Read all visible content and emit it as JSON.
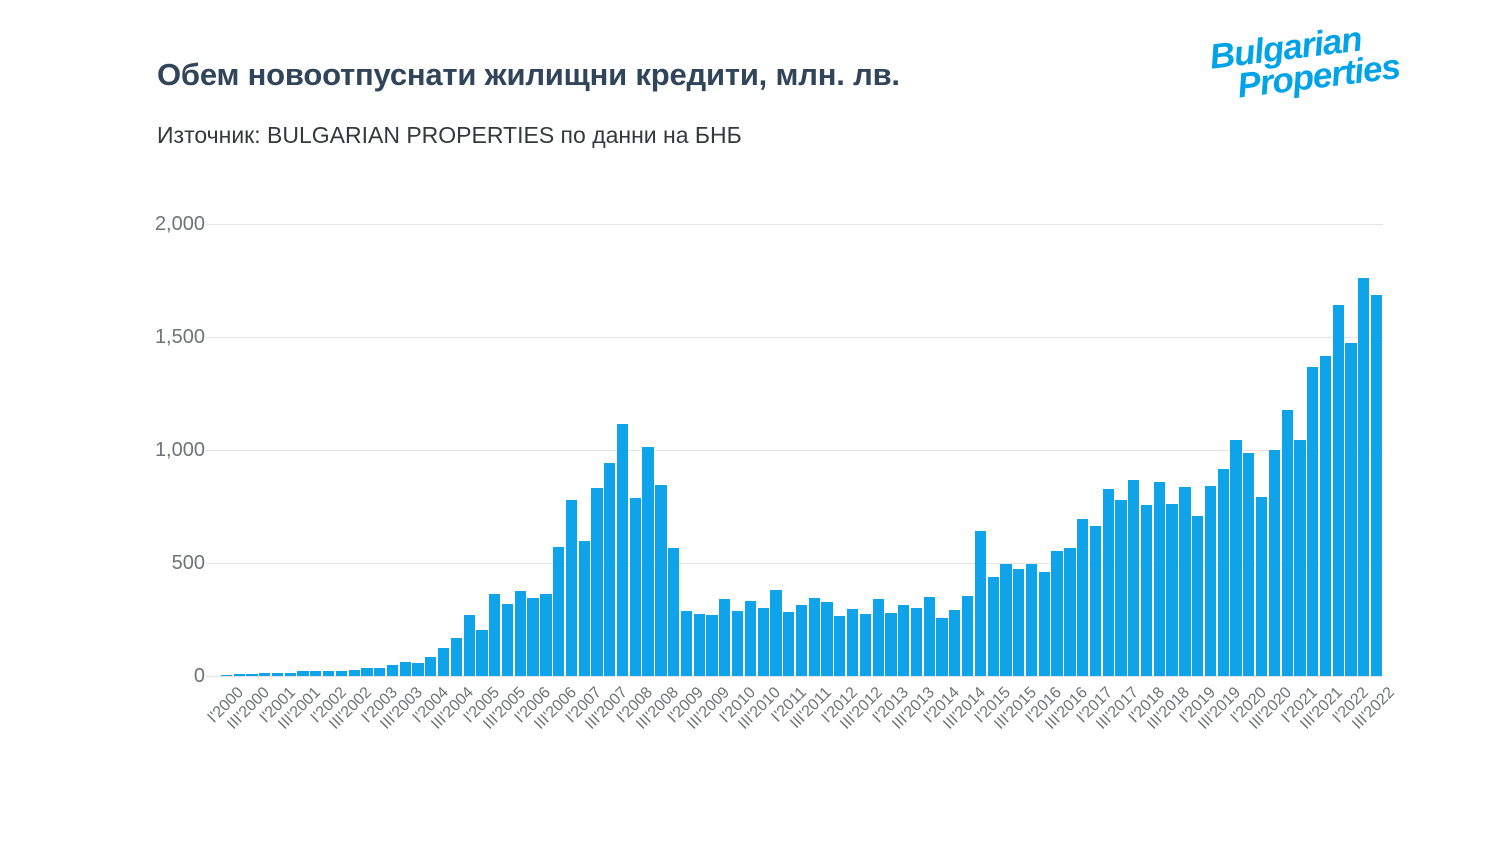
{
  "header": {
    "title": "Обем новоотпуснати жилищни кредити, млн. лв.",
    "source": "Източник: BULGARIAN PROPERTIES по данни на БНБ"
  },
  "logo": {
    "line1": "Bulgarian",
    "line2": "Properties",
    "color": "#00a3e8"
  },
  "chart_data": {
    "type": "bar",
    "title": "Обем новоотпуснати жилищни кредити, млн. лв.",
    "source_note": "Източник: BULGARIAN PROPERTIES по данни на БНБ",
    "unit": "млн. лв.",
    "bar_color": "#0fa3e9",
    "grid": true,
    "legend": "none",
    "ylim": [
      0,
      2000
    ],
    "yticks": [
      0,
      500,
      1000,
      1500,
      2000
    ],
    "ytick_labels": [
      "0",
      "500",
      "1,000",
      "1,500",
      "2,000"
    ],
    "x_label_every": 2,
    "categories": [
      "I'2000",
      "II'2000",
      "III'2000",
      "IV'2000",
      "I'2001",
      "II'2001",
      "III'2001",
      "IV'2001",
      "I'2002",
      "II'2002",
      "III'2002",
      "IV'2002",
      "I'2003",
      "II'2003",
      "III'2003",
      "IV'2003",
      "I'2004",
      "II'2004",
      "III'2004",
      "IV'2004",
      "I'2005",
      "II'2005",
      "III'2005",
      "IV'2005",
      "I'2006",
      "II'2006",
      "III'2006",
      "IV'2006",
      "I'2007",
      "II'2007",
      "III'2007",
      "IV'2007",
      "I'2008",
      "II'2008",
      "III'2008",
      "IV'2008",
      "I'2009",
      "II'2009",
      "III'2009",
      "IV'2009",
      "I'2010",
      "II'2010",
      "III'2010",
      "IV'2010",
      "I'2011",
      "II'2011",
      "III'2011",
      "IV'2011",
      "I'2012",
      "II'2012",
      "III'2012",
      "IV'2012",
      "I'2013",
      "II'2013",
      "III'2013",
      "IV'2013",
      "I'2014",
      "II'2014",
      "III'2014",
      "IV'2014",
      "I'2015",
      "II'2015",
      "III'2015",
      "IV'2015",
      "I'2016",
      "II'2016",
      "III'2016",
      "IV'2016",
      "I'2017",
      "II'2017",
      "III'2017",
      "IV'2017",
      "I'2018",
      "II'2018",
      "III'2018",
      "IV'2018",
      "I'2019",
      "II'2019",
      "III'2019",
      "IV'2019",
      "I'2020",
      "II'2020",
      "III'2020",
      "IV'2020",
      "I'2021",
      "II'2021",
      "III'2021",
      "IV'2021",
      "I'2022",
      "II'2022",
      "III'2022"
    ],
    "values": [
      6,
      9,
      9,
      12,
      13,
      13,
      21,
      22,
      22,
      22,
      26,
      35,
      35,
      47,
      62,
      56,
      85,
      125,
      170,
      270,
      204,
      361,
      317,
      376,
      347,
      361,
      572,
      779,
      597,
      830,
      941,
      1114,
      789,
      1015,
      845,
      568,
      288,
      276,
      270,
      339,
      288,
      332,
      302,
      381,
      285,
      314,
      344,
      329,
      266,
      295,
      273,
      339,
      277,
      314,
      302,
      351,
      258,
      292,
      354,
      643,
      437,
      497,
      474,
      495,
      460,
      555,
      565,
      695,
      664,
      828,
      779,
      866,
      755,
      857,
      760,
      838,
      708,
      840,
      917,
      1044,
      985,
      790,
      1000,
      1177,
      1044,
      1366,
      1416,
      1640,
      1472,
      1762,
      1686
    ]
  }
}
